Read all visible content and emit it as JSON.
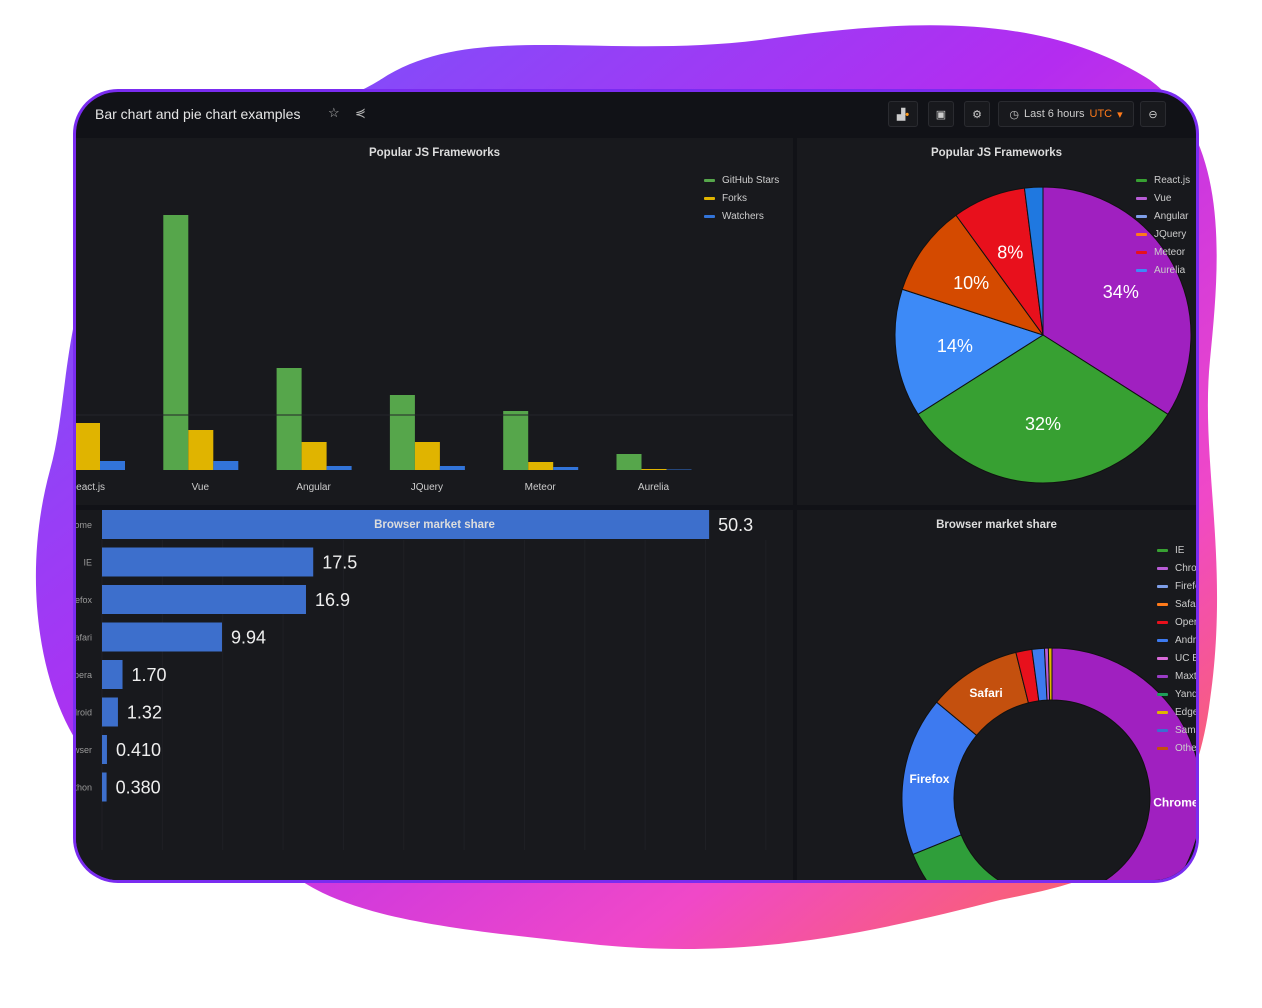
{
  "header": {
    "title": "Bar chart and pie chart examples",
    "time_range": "Last 6 hours",
    "timezone": "UTC",
    "icons": [
      "star-icon",
      "share-icon",
      "add-panel-icon",
      "save-icon",
      "settings-icon",
      "clock-icon",
      "zoom-out-icon"
    ]
  },
  "colors": {
    "accent_orange": "#ff7a1a",
    "background": "#111217",
    "panel": "#18191d"
  },
  "chart_data": [
    {
      "type": "bar",
      "title": "Popular JS Frameworks",
      "categories": [
        "React.js",
        "Vue",
        "Angular",
        "JQuery",
        "Meteor",
        "Aurelia"
      ],
      "series": [
        {
          "name": "GitHub Stars",
          "color": "#56a64b",
          "values": [
            null,
            255,
            102,
            75,
            59,
            16
          ]
        },
        {
          "name": "Forks",
          "color": "#e0b400",
          "values": [
            47,
            40,
            28,
            28,
            8,
            1
          ]
        },
        {
          "name": "Watchers",
          "color": "#3274d9",
          "values": [
            9,
            9,
            4,
            4,
            3,
            0.5
          ]
        }
      ],
      "legend": "top-right",
      "grid": false
    },
    {
      "type": "pie",
      "title": "Popular JS Frameworks",
      "labels": [
        "React.js",
        "Vue",
        "Angular",
        "JQuery",
        "Meteor",
        "Aurelia"
      ],
      "slices": [
        {
          "label": "Vue",
          "value": 34,
          "color": "#a020c0"
        },
        {
          "label": "React.js",
          "value": 32,
          "color": "#37a032"
        },
        {
          "label": "Angular",
          "value": 14,
          "color": "#3d8af7"
        },
        {
          "label": "JQuery",
          "value": 10,
          "color": "#d44a00"
        },
        {
          "label": "Meteor",
          "value": 8,
          "color": "#e8101c"
        },
        {
          "label": "Aurelia",
          "value": 2,
          "color": "#1f78e0"
        }
      ],
      "legend_colors": [
        "#37a032",
        "#b85cd6",
        "#7e9ee8",
        "#ff7a1a",
        "#e8101c",
        "#3d8af7"
      ],
      "legend": "right"
    },
    {
      "type": "bar",
      "orientation": "horizontal",
      "title": "Browser market share",
      "categories": [
        "Chrome",
        "IE",
        "Firefox",
        "Safari",
        "Opera",
        "Android",
        "UC Browser",
        "Maxthon"
      ],
      "values": [
        50.3,
        17.5,
        16.9,
        9.94,
        1.7,
        1.32,
        0.41,
        0.38
      ],
      "value_labels": [
        "50.3",
        "17.5",
        "16.9",
        "9.94",
        "1.70",
        "1.32",
        "0.410",
        "0.380"
      ],
      "xticks": [
        "0",
        "5",
        "10",
        "15",
        "20",
        "25",
        "30",
        "35",
        "40",
        "45",
        "50",
        "55"
      ],
      "xlim": [
        0,
        55
      ],
      "color": "#3d6fcc"
    },
    {
      "type": "pie",
      "donut": true,
      "title": "Browser market share",
      "slices": [
        {
          "label": "Chrome",
          "value": 50.3,
          "color": "#a020c0"
        },
        {
          "label": "IE",
          "value": 17.5,
          "color": "#2f9e3a"
        },
        {
          "label": "Firefox",
          "value": 16.9,
          "color": "#3d7af0"
        },
        {
          "label": "Safari",
          "value": 9.94,
          "color": "#c4500e"
        },
        {
          "label": "Opera",
          "value": 1.7,
          "color": "#e8101c"
        },
        {
          "label": "Android",
          "value": 1.32,
          "color": "#3d7af0"
        },
        {
          "label": "UC Browser",
          "value": 0.41,
          "color": "#b85cd6"
        },
        {
          "label": "Maxthon",
          "value": 0.38,
          "color": "#e0b400"
        }
      ],
      "slice_labels": [
        "Chrome",
        "IE",
        "Firefox",
        "Safari"
      ],
      "legend_items": [
        {
          "name": "IE",
          "color": "#37a032"
        },
        {
          "name": "Chrome",
          "color": "#b85cd6"
        },
        {
          "name": "Firefox",
          "color": "#7e9ee8"
        },
        {
          "name": "Safari",
          "color": "#ff7a1a"
        },
        {
          "name": "Opera",
          "color": "#e8101c"
        },
        {
          "name": "Android",
          "color": "#3d7af0"
        },
        {
          "name": "UC Browser",
          "color": "#d86ad8"
        },
        {
          "name": "Maxthon",
          "color": "#9a3cc6"
        },
        {
          "name": "Yandex",
          "color": "#1f9e5a"
        },
        {
          "name": "Edge",
          "color": "#e0b400"
        },
        {
          "name": "Samsung",
          "color": "#3a6ed0"
        },
        {
          "name": "Other",
          "color": "#c4500e"
        }
      ],
      "legend": "right"
    }
  ]
}
